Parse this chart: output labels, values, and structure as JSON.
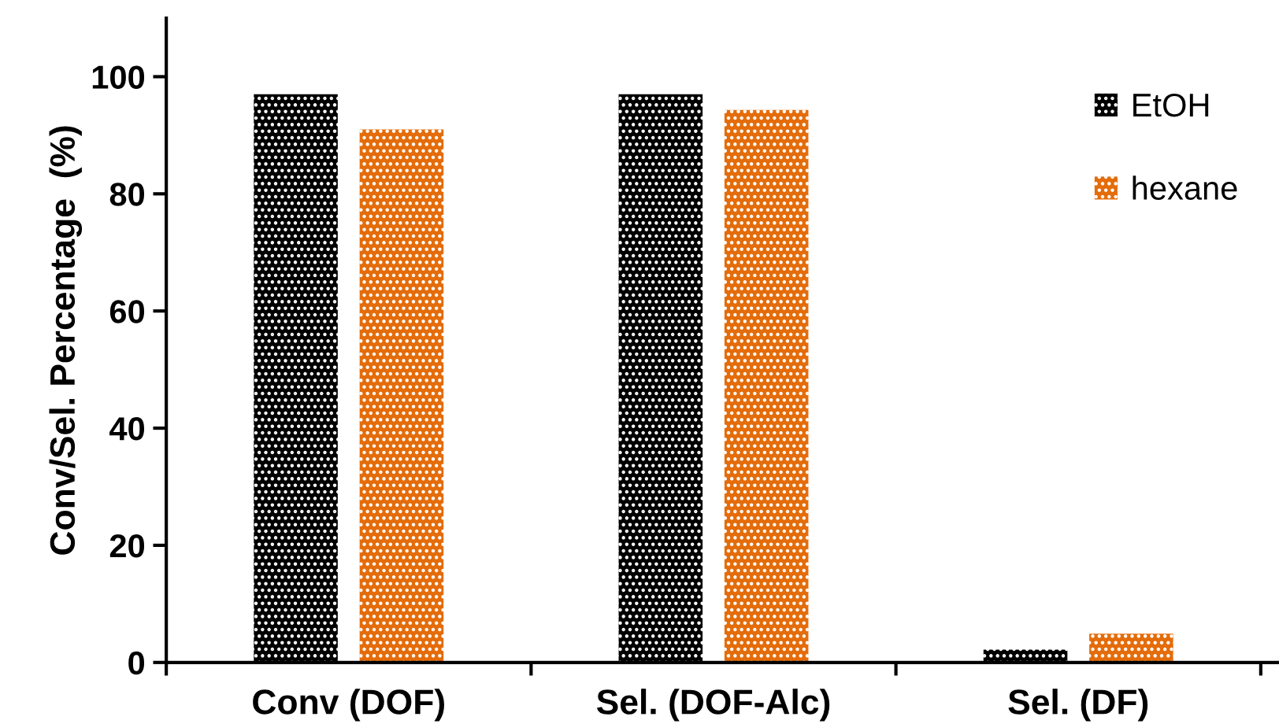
{
  "chart_data": {
    "type": "bar",
    "ylabel": "Conv/Sel. Percentage  (%)",
    "categories": [
      "Conv (DOF)",
      "Sel. (DOF-Alc)",
      "Sel. (DF)"
    ],
    "series": [
      {
        "name": "EtOH",
        "color": "#000000",
        "values": [
          97,
          97,
          2.2
        ]
      },
      {
        "name": "hexane",
        "color": "#e46c0a",
        "values": [
          91,
          94.3,
          4.9
        ]
      }
    ],
    "ylim": [
      0,
      110
    ],
    "yticks": [
      0,
      20,
      40,
      60,
      80,
      100
    ],
    "grid": false,
    "legend": "top right"
  }
}
